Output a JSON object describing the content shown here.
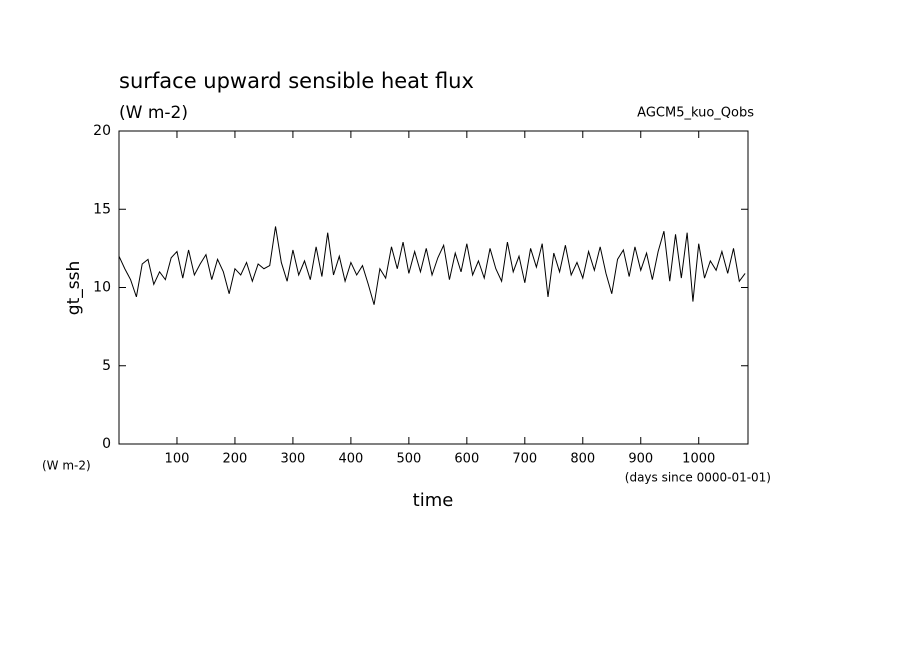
{
  "chart_data": {
    "type": "line",
    "title": "surface upward sensible heat flux",
    "subtitle": "(W m-2)",
    "annotation": "AGCM5_kuo_Qobs",
    "y_label": "gt_ssh",
    "y_unit": "(W m-2)",
    "x_label": "time",
    "x_unit": "(days since 0000-01-01)",
    "x": [
      0,
      10,
      20,
      30,
      40,
      50,
      60,
      70,
      80,
      90,
      100,
      110,
      120,
      130,
      140,
      150,
      160,
      170,
      180,
      190,
      200,
      210,
      220,
      230,
      240,
      250,
      260,
      270,
      280,
      290,
      300,
      310,
      320,
      330,
      340,
      350,
      360,
      370,
      380,
      390,
      400,
      410,
      420,
      430,
      440,
      450,
      460,
      470,
      480,
      490,
      500,
      510,
      520,
      530,
      540,
      550,
      560,
      570,
      580,
      590,
      600,
      610,
      620,
      630,
      640,
      650,
      660,
      670,
      680,
      690,
      700,
      710,
      720,
      730,
      740,
      750,
      760,
      770,
      780,
      790,
      800,
      810,
      820,
      830,
      840,
      850,
      860,
      870,
      880,
      890,
      900,
      910,
      920,
      930,
      940,
      950,
      960,
      970,
      980,
      990,
      1000,
      1010,
      1020,
      1030,
      1040,
      1050,
      1060,
      1070,
      1080
    ],
    "series": [
      {
        "color": "#000000",
        "values": [
          12.0,
          11.2,
          10.5,
          9.4,
          11.5,
          11.8,
          10.2,
          11.0,
          10.5,
          11.9,
          12.3,
          10.6,
          12.4,
          10.8,
          11.5,
          12.1,
          10.5,
          11.8,
          11.0,
          9.6,
          11.2,
          10.8,
          11.6,
          10.4,
          11.5,
          11.2,
          11.4,
          13.9,
          11.6,
          10.4,
          12.4,
          10.8,
          11.7,
          10.5,
          12.6,
          10.7,
          13.5,
          10.8,
          12.0,
          10.4,
          11.6,
          10.8,
          11.4,
          10.2,
          8.9,
          11.2,
          10.6,
          12.6,
          11.2,
          12.9,
          10.9,
          12.3,
          11.0,
          12.5,
          10.8,
          11.9,
          12.7,
          10.5,
          12.2,
          11.0,
          12.8,
          10.8,
          11.7,
          10.6,
          12.5,
          11.2,
          10.4,
          12.9,
          11.0,
          12.0,
          10.3,
          12.5,
          11.3,
          12.8,
          9.4,
          12.2,
          11.0,
          12.7,
          10.8,
          11.6,
          10.6,
          12.3,
          11.1,
          12.6,
          10.9,
          9.6,
          11.8,
          12.4,
          10.7,
          12.6,
          11.1,
          12.2,
          10.5,
          12.3,
          13.6,
          10.4,
          13.4,
          10.6,
          13.5,
          9.1,
          12.8,
          10.6,
          11.7,
          11.1,
          12.3,
          10.9,
          12.5,
          10.4,
          10.9
        ]
      }
    ],
    "xlim": [
      0,
      1085
    ],
    "ylim": [
      0,
      20
    ],
    "xticks": [
      100,
      200,
      300,
      400,
      500,
      600,
      700,
      800,
      900,
      1000
    ],
    "yticks": [
      0,
      5,
      10,
      15,
      20
    ]
  }
}
